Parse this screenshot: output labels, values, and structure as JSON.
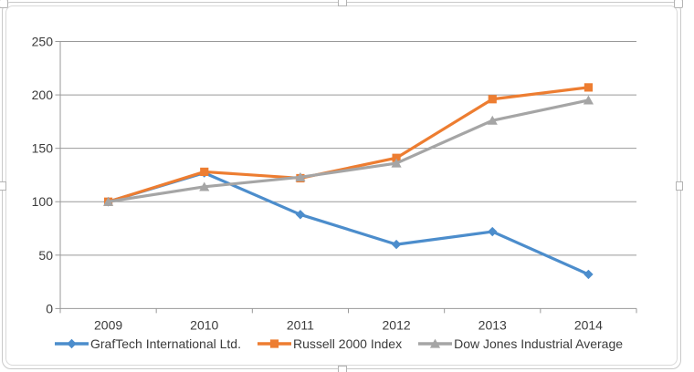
{
  "chart_data": {
    "type": "line",
    "categories": [
      "2009",
      "2010",
      "2011",
      "2012",
      "2013",
      "2014"
    ],
    "series": [
      {
        "name": "GrafTech International Ltd.",
        "color": "#4C8DCC",
        "marker": "diamond",
        "values": [
          100,
          127,
          88,
          60,
          72,
          32
        ]
      },
      {
        "name": "Russell 2000 Index",
        "color": "#ED7D31",
        "marker": "square",
        "values": [
          100,
          128,
          122,
          141,
          196,
          207
        ]
      },
      {
        "name": "Dow Jones Industrial Average",
        "color": "#A5A5A5",
        "marker": "triangle",
        "values": [
          100,
          114,
          123,
          136,
          176,
          195
        ]
      }
    ],
    "y_ticks": [
      0,
      50,
      100,
      150,
      200,
      250
    ],
    "ylim": [
      0,
      250
    ],
    "grid": true,
    "legend_position": "bottom"
  },
  "colors": {
    "gridline": "#999999",
    "axis_line": "#999999",
    "axis_text": "#3b3b3b",
    "chart_border": "#d9d9d9",
    "selection_border": "#c9c9c9",
    "handle_fill": "#ffffff",
    "handle_border": "#b3b3b3",
    "plot_background": "#ffffff"
  }
}
